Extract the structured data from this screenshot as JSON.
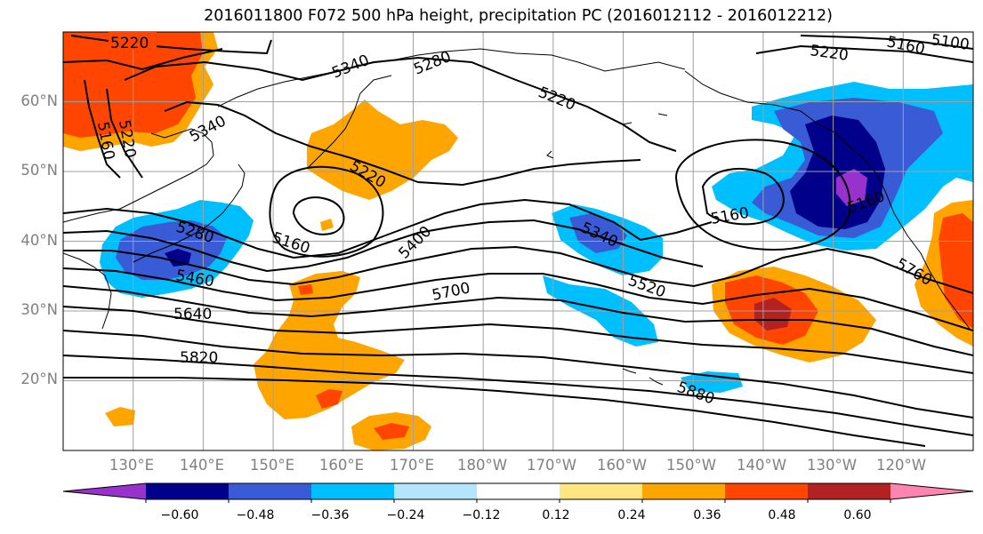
{
  "title": "2016011800 F072 500 hPa height, precipitation PC (2016012112 - 2016012212)",
  "map": {
    "projection": "equirectangular",
    "lon_range": [
      120,
      250
    ],
    "lat_range": [
      10,
      70
    ],
    "grid_lons": [
      130,
      140,
      150,
      160,
      170,
      180,
      190,
      200,
      210,
      220,
      230,
      240
    ],
    "grid_lats": [
      20,
      30,
      40,
      50,
      60
    ],
    "lat_ticks": [
      "20°N",
      "30°N",
      "40°N",
      "50°N",
      "60°N"
    ],
    "lon_ticks": [
      "130°E",
      "140°E",
      "150°E",
      "160°E",
      "170°E",
      "180°W",
      "170°W",
      "160°W",
      "150°W",
      "140°W",
      "130°W",
      "120°W"
    ],
    "contour_color": "#000000",
    "coastline_color": "#000000",
    "grid_color": "#a0a0a0"
  },
  "height_contours": {
    "variable": "500 hPa height",
    "labels": [
      "5220",
      "5340",
      "5280",
      "5220",
      "5160",
      "5100",
      "5160",
      "5220",
      "5340",
      "5220",
      "5220",
      "5160",
      "5280",
      "5160",
      "5460",
      "5400",
      "5640",
      "5700",
      "5820",
      "5340",
      "5520",
      "5160",
      "5760",
      "5880"
    ]
  },
  "colorbar": {
    "ticks": [
      "−0.60",
      "−0.48",
      "−0.36",
      "−0.24",
      "−0.12",
      "0.12",
      "0.24",
      "0.36",
      "0.48",
      "0.60"
    ],
    "colors": [
      "#9932cc",
      "#00008b",
      "#3a5bd6",
      "#00bfff",
      "#b3e5fc",
      "#ffffff",
      "#ffe680",
      "#ffa500",
      "#ff4500",
      "#b22222",
      "#ff85b0"
    ],
    "extend": "both"
  }
}
